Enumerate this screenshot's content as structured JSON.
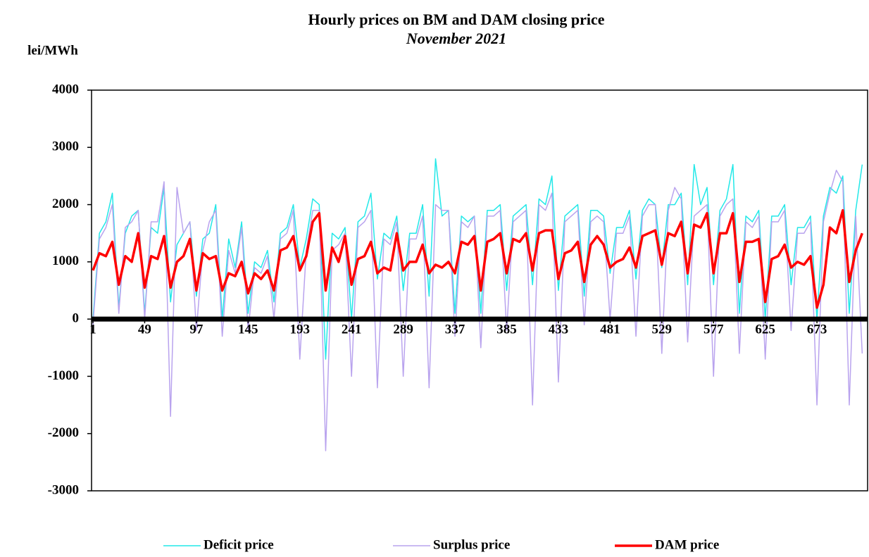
{
  "chart_data": {
    "type": "line",
    "title": "Hourly prices on BM and DAM closing price",
    "subtitle": "November 2021",
    "y_label": "lei/MWh",
    "legend": "bottom",
    "xlim": [
      1,
      720
    ],
    "xticks": [
      1,
      49,
      97,
      145,
      193,
      241,
      289,
      337,
      385,
      433,
      481,
      529,
      577,
      625,
      673
    ],
    "ylim": [
      -3000,
      4000
    ],
    "yticks": [
      -3000,
      -2000,
      -1000,
      0,
      1000,
      2000,
      3000,
      4000
    ],
    "x": [
      1,
      7,
      13,
      19,
      25,
      31,
      37,
      43,
      49,
      55,
      61,
      67,
      73,
      79,
      85,
      91,
      97,
      103,
      109,
      115,
      121,
      127,
      133,
      139,
      145,
      151,
      157,
      163,
      169,
      175,
      181,
      187,
      193,
      199,
      205,
      211,
      217,
      223,
      229,
      235,
      241,
      247,
      253,
      259,
      265,
      271,
      277,
      283,
      289,
      295,
      301,
      307,
      313,
      319,
      325,
      331,
      337,
      343,
      349,
      355,
      361,
      367,
      373,
      379,
      385,
      391,
      397,
      403,
      409,
      415,
      421,
      427,
      433,
      439,
      445,
      451,
      457,
      463,
      469,
      475,
      481,
      487,
      493,
      499,
      505,
      511,
      517,
      523,
      529,
      535,
      541,
      547,
      553,
      559,
      565,
      571,
      577,
      583,
      589,
      595,
      601,
      607,
      613,
      619,
      625,
      631,
      637,
      643,
      649,
      655,
      661,
      667,
      673,
      679,
      685,
      691,
      697,
      703,
      709,
      715
    ],
    "series": [
      {
        "name": "Deficit price",
        "color": "#22e8e8",
        "width": 1.5,
        "values": [
          0,
          1500,
          1700,
          2200,
          200,
          1500,
          1800,
          1900,
          100,
          1600,
          1500,
          2300,
          300,
          1300,
          1500,
          1700,
          400,
          1400,
          1500,
          2000,
          0,
          1400,
          900,
          1700,
          100,
          1000,
          900,
          1200,
          300,
          1500,
          1600,
          2000,
          900,
          1400,
          2100,
          2000,
          -700,
          1500,
          1400,
          1600,
          0,
          1700,
          1800,
          2200,
          700,
          1500,
          1400,
          1800,
          500,
          1500,
          1500,
          2000,
          400,
          2800,
          1800,
          1900,
          100,
          1800,
          1700,
          1800,
          100,
          1900,
          1900,
          2000,
          500,
          1800,
          1900,
          2000,
          600,
          2100,
          2000,
          2500,
          500,
          1800,
          1900,
          2000,
          400,
          1900,
          1900,
          1800,
          800,
          1600,
          1600,
          1900,
          700,
          1900,
          2100,
          2000,
          900,
          2000,
          2000,
          2200,
          600,
          2700,
          2000,
          2300,
          600,
          1900,
          2100,
          2700,
          100,
          1800,
          1700,
          1900,
          0,
          1800,
          1800,
          2000,
          600,
          1600,
          1600,
          1800,
          0,
          1800,
          2300,
          2200,
          2500,
          100,
          1900,
          2700
        ]
      },
      {
        "name": "Surplus price",
        "color": "#b9a3ee",
        "width": 1.5,
        "values": [
          -100,
          1400,
          1600,
          2000,
          100,
          1600,
          1700,
          1900,
          0,
          1700,
          1700,
          2400,
          -1700,
          2300,
          1500,
          1700,
          -200,
          1200,
          1700,
          1900,
          -300,
          1200,
          800,
          1600,
          -200,
          900,
          800,
          1100,
          0,
          1400,
          1500,
          1900,
          -700,
          1200,
          1900,
          1900,
          -2300,
          1200,
          1300,
          1500,
          -1000,
          1600,
          1700,
          1900,
          -1200,
          1400,
          1300,
          1700,
          -1000,
          1400,
          1400,
          1800,
          -1200,
          2000,
          1900,
          1900,
          -300,
          1700,
          1600,
          1800,
          -500,
          1800,
          1800,
          1900,
          -200,
          1700,
          1800,
          1900,
          -1500,
          2000,
          1900,
          2200,
          -1100,
          1700,
          1800,
          1900,
          -100,
          1700,
          1800,
          1700,
          0,
          1500,
          1500,
          1800,
          -300,
          1800,
          2000,
          2000,
          -600,
          1900,
          2300,
          2100,
          -400,
          1800,
          1900,
          2000,
          -1000,
          1800,
          2000,
          2100,
          -600,
          1700,
          1600,
          1800,
          -700,
          1700,
          1700,
          1900,
          -200,
          1500,
          1500,
          1700,
          -1500,
          1700,
          2200,
          2600,
          2400,
          -1500,
          1800,
          -600
        ]
      },
      {
        "name": "DAM price",
        "color": "#ff0000",
        "width": 3.5,
        "values": [
          850,
          1150,
          1100,
          1350,
          600,
          1100,
          1000,
          1500,
          550,
          1100,
          1050,
          1450,
          550,
          1000,
          1100,
          1400,
          500,
          1150,
          1050,
          1100,
          500,
          800,
          750,
          1000,
          450,
          800,
          700,
          850,
          500,
          1200,
          1250,
          1450,
          850,
          1100,
          1700,
          1850,
          500,
          1250,
          1000,
          1450,
          600,
          1050,
          1100,
          1350,
          800,
          900,
          850,
          1500,
          850,
          1000,
          1000,
          1300,
          800,
          950,
          900,
          1000,
          800,
          1350,
          1300,
          1450,
          500,
          1350,
          1400,
          1500,
          800,
          1400,
          1350,
          1500,
          850,
          1500,
          1550,
          1550,
          700,
          1150,
          1200,
          1350,
          650,
          1300,
          1450,
          1300,
          900,
          1000,
          1050,
          1250,
          900,
          1450,
          1500,
          1550,
          950,
          1500,
          1450,
          1700,
          800,
          1650,
          1600,
          1850,
          800,
          1500,
          1500,
          1850,
          650,
          1350,
          1350,
          1400,
          300,
          1050,
          1100,
          1300,
          900,
          1000,
          950,
          1100,
          200,
          600,
          1600,
          1500,
          1900,
          650,
          1200,
          1500
        ]
      }
    ]
  }
}
